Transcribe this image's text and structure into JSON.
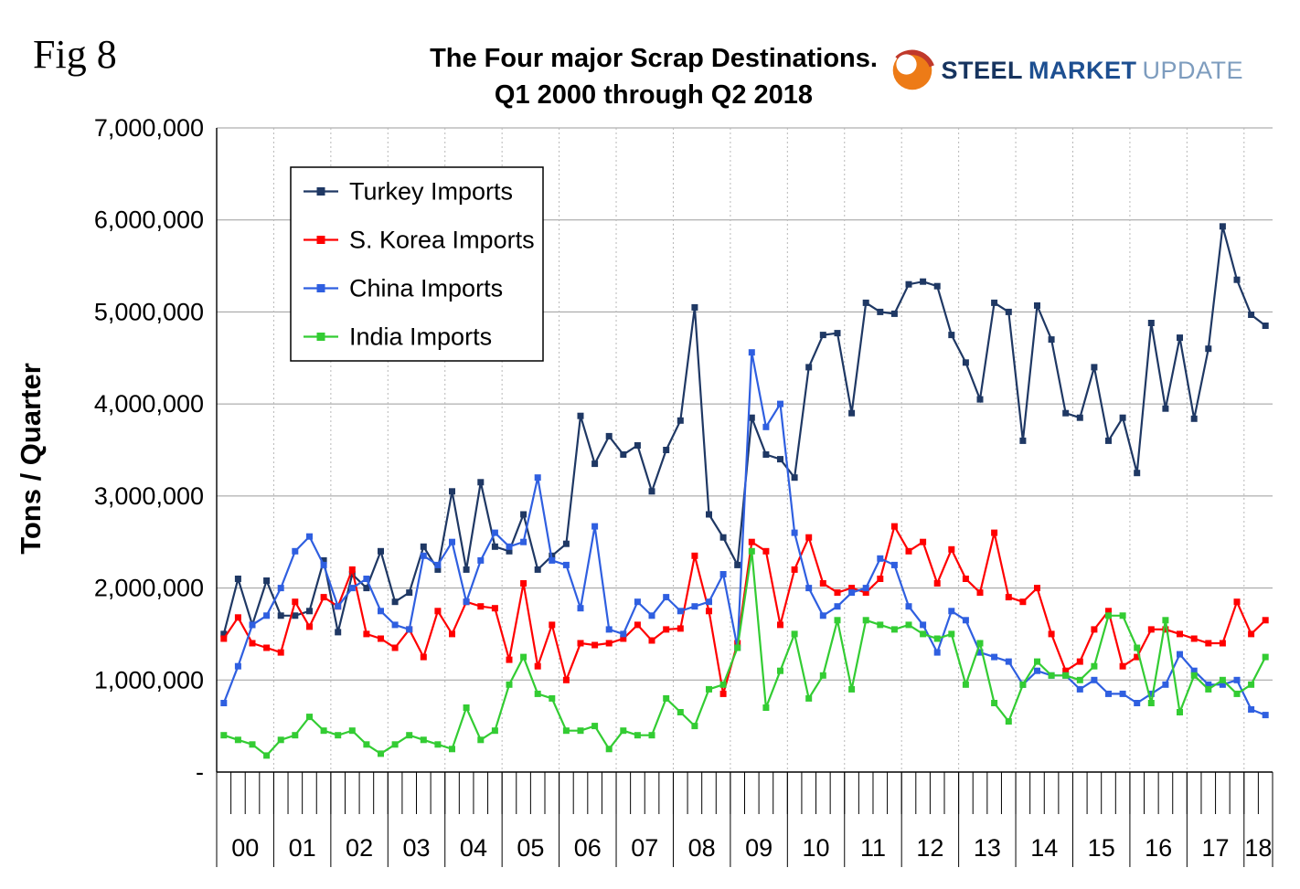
{
  "header": {
    "fig_label": "Fig 8",
    "title_line1": "The Four major Scrap Destinations.",
    "title_line2": "Q1 2000 through Q2 2018",
    "logo": {
      "word1": "STEEL",
      "word2": "MARKET",
      "word3": "UPDATE"
    }
  },
  "chart_data": {
    "type": "line",
    "title": "The Four major Scrap Destinations.",
    "subtitle": "Q1 2000 through Q2 2018",
    "xlabel": "",
    "ylabel": "Tons / Quarter",
    "ylim": [
      0,
      7000000
    ],
    "grid": true,
    "legend_position": "upper-left-inside",
    "x_unit": "quarter",
    "year_labels": [
      "00",
      "01",
      "02",
      "03",
      "04",
      "05",
      "06",
      "07",
      "08",
      "09",
      "10",
      "11",
      "12",
      "13",
      "14",
      "15",
      "16",
      "17",
      "18"
    ],
    "year_sizes": [
      4,
      4,
      4,
      4,
      4,
      4,
      4,
      4,
      4,
      4,
      4,
      4,
      4,
      4,
      4,
      4,
      4,
      4,
      2
    ],
    "y_ticks": [
      {
        "value": 7000000,
        "label": "7,000,000"
      },
      {
        "value": 6000000,
        "label": "6,000,000"
      },
      {
        "value": 5000000,
        "label": "5,000,000"
      },
      {
        "value": 4000000,
        "label": "4,000,000"
      },
      {
        "value": 3000000,
        "label": "3,000,000"
      },
      {
        "value": 2000000,
        "label": "2,000,000"
      },
      {
        "value": 1000000,
        "label": "1,000,000"
      },
      {
        "value": 0,
        "label": "-"
      }
    ],
    "series": [
      {
        "name": "Turkey Imports",
        "color": "#1F3864",
        "values": [
          1500000,
          2100000,
          1600000,
          2080000,
          1700000,
          1700000,
          1750000,
          2300000,
          1520000,
          2150000,
          2000000,
          2400000,
          1850000,
          1950000,
          2450000,
          2200000,
          3050000,
          2200000,
          3150000,
          2450000,
          2400000,
          2800000,
          2200000,
          2350000,
          2480000,
          3870000,
          3350000,
          3650000,
          3450000,
          3550000,
          3050000,
          3500000,
          3820000,
          5050000,
          2800000,
          2550000,
          2250000,
          3850000,
          3450000,
          3400000,
          3200000,
          4400000,
          4750000,
          4770000,
          3900000,
          5100000,
          5000000,
          4980000,
          5300000,
          5330000,
          5280000,
          4750000,
          4450000,
          4050000,
          5100000,
          5000000,
          3600000,
          5070000,
          4700000,
          3900000,
          3850000,
          4400000,
          3600000,
          3850000,
          3250000,
          4880000,
          3950000,
          4720000,
          3840000,
          4600000,
          5930000,
          5350000,
          4970000,
          4850000
        ]
      },
      {
        "name": "S. Korea Imports",
        "color": "#FF0000",
        "values": [
          1450000,
          1680000,
          1400000,
          1350000,
          1300000,
          1850000,
          1580000,
          1900000,
          1800000,
          2200000,
          1500000,
          1450000,
          1350000,
          1550000,
          1250000,
          1750000,
          1500000,
          1850000,
          1800000,
          1780000,
          1220000,
          2050000,
          1150000,
          1600000,
          1000000,
          1400000,
          1380000,
          1400000,
          1450000,
          1600000,
          1430000,
          1550000,
          1560000,
          2350000,
          1750000,
          850000,
          1400000,
          2500000,
          2400000,
          1600000,
          2200000,
          2550000,
          2050000,
          1950000,
          2000000,
          1950000,
          2100000,
          2670000,
          2400000,
          2500000,
          2050000,
          2420000,
          2100000,
          1950000,
          2600000,
          1900000,
          1850000,
          2000000,
          1500000,
          1100000,
          1200000,
          1550000,
          1750000,
          1150000,
          1250000,
          1550000,
          1550000,
          1500000,
          1450000,
          1400000,
          1400000,
          1850000,
          1500000,
          1650000
        ]
      },
      {
        "name": "China Imports",
        "color": "#2F5FE0",
        "values": [
          750000,
          1150000,
          1600000,
          1700000,
          2000000,
          2400000,
          2560000,
          2250000,
          1800000,
          2000000,
          2100000,
          1750000,
          1600000,
          1550000,
          2350000,
          2250000,
          2500000,
          1850000,
          2300000,
          2600000,
          2450000,
          2500000,
          3200000,
          2300000,
          2250000,
          1780000,
          2670000,
          1550000,
          1500000,
          1850000,
          1700000,
          1900000,
          1750000,
          1800000,
          1850000,
          2150000,
          1350000,
          4560000,
          3750000,
          4000000,
          2600000,
          2000000,
          1700000,
          1800000,
          1950000,
          2000000,
          2320000,
          2250000,
          1800000,
          1600000,
          1300000,
          1750000,
          1650000,
          1300000,
          1250000,
          1200000,
          950000,
          1100000,
          1050000,
          1050000,
          900000,
          1000000,
          850000,
          850000,
          750000,
          850000,
          950000,
          1280000,
          1100000,
          950000,
          950000,
          1000000,
          680000,
          620000
        ]
      },
      {
        "name": "India Imports",
        "color": "#33CC33",
        "values": [
          400000,
          350000,
          300000,
          180000,
          350000,
          400000,
          600000,
          450000,
          400000,
          450000,
          300000,
          200000,
          300000,
          400000,
          350000,
          300000,
          250000,
          700000,
          350000,
          450000,
          950000,
          1250000,
          850000,
          800000,
          450000,
          450000,
          500000,
          250000,
          450000,
          400000,
          400000,
          800000,
          650000,
          500000,
          900000,
          950000,
          1350000,
          2400000,
          700000,
          1100000,
          1500000,
          800000,
          1050000,
          1650000,
          900000,
          1650000,
          1600000,
          1550000,
          1600000,
          1500000,
          1450000,
          1500000,
          950000,
          1400000,
          750000,
          550000,
          950000,
          1200000,
          1050000,
          1050000,
          1000000,
          1150000,
          1700000,
          1700000,
          1350000,
          750000,
          1650000,
          650000,
          1050000,
          900000,
          1000000,
          850000,
          950000,
          1250000
        ]
      }
    ]
  }
}
